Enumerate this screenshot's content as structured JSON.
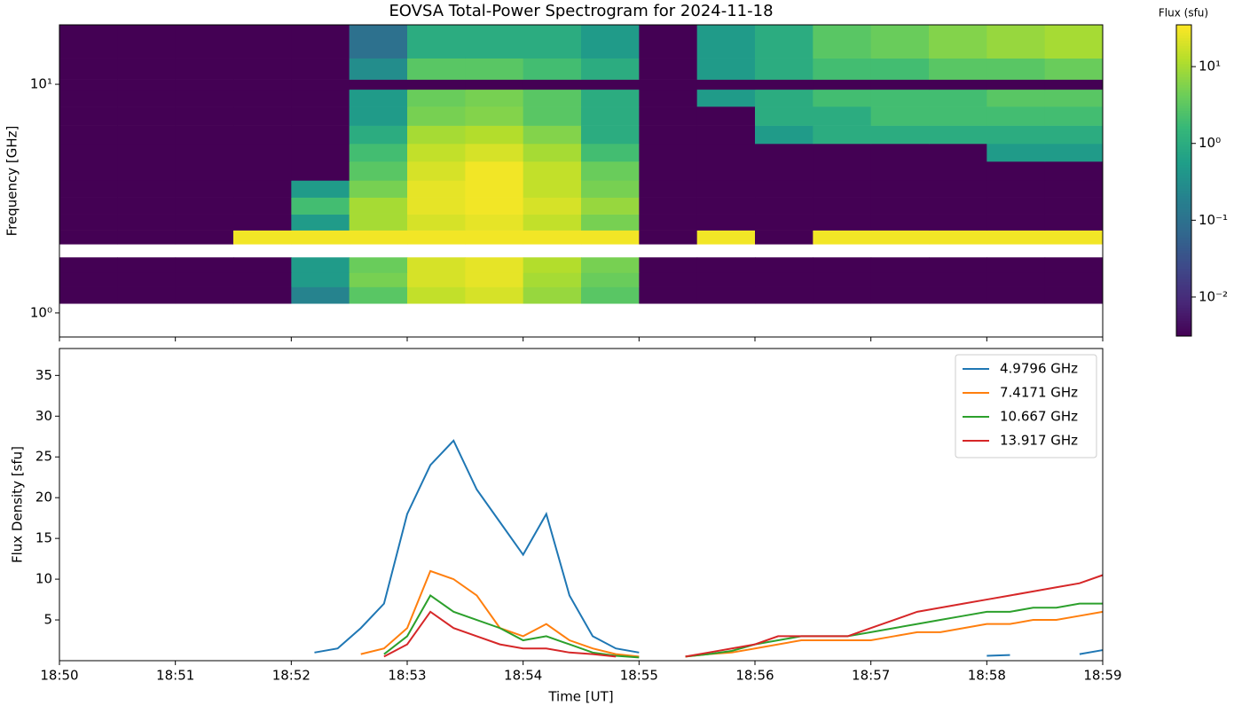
{
  "chart_data": [
    {
      "type": "heatmap",
      "title": "EOVSA Total-Power Spectrogram for 2024-11-18",
      "y_label": "Frequency [GHz]",
      "colorbar_label": "Flux (sfu)",
      "colormap": "viridis",
      "log_y": true,
      "log_color": true,
      "xlim": [
        0,
        9
      ],
      "ylim": [
        0.785,
        18.2
      ],
      "yticks": [
        {
          "value": 1,
          "label": "10⁰"
        },
        {
          "value": 10,
          "label": "10¹"
        }
      ],
      "clim": [
        0.0031,
        35
      ],
      "cticks": [
        {
          "value": 0.01,
          "label": "10⁻²"
        },
        {
          "value": 0.1,
          "label": "10⁻¹"
        },
        {
          "value": 1,
          "label": "10⁰"
        },
        {
          "value": 10,
          "label": "10¹"
        }
      ],
      "x": [
        0,
        0.5,
        1,
        1.5,
        2,
        2.5,
        3,
        3.5,
        4,
        4.5,
        5,
        5.5,
        6,
        6.5,
        7,
        7.5,
        8,
        8.5,
        9
      ],
      "y": [
        1.1,
        1.3,
        1.5,
        1.75,
        2.0,
        2.3,
        2.7,
        3.2,
        3.8,
        4.6,
        5.5,
        6.6,
        8,
        9.5,
        10.5,
        13,
        18.2
      ],
      "z": [
        [
          0.003,
          0.003,
          0.003,
          0.003,
          0.2,
          3,
          15,
          20,
          8,
          3,
          0.003,
          0.003,
          0.003,
          0.003,
          0.003,
          0.003,
          0.003,
          0.003
        ],
        [
          0.003,
          0.003,
          0.003,
          0.003,
          0.5,
          5,
          20,
          25,
          10,
          4,
          0.003,
          0.003,
          0.003,
          0.003,
          0.003,
          0.003,
          0.003,
          0.003
        ],
        [
          0.003,
          0.003,
          0.003,
          0.003,
          0.5,
          4,
          20,
          25,
          12,
          5,
          0.003,
          0.003,
          0.003,
          0.003,
          0.003,
          0.003,
          0.003,
          0.003
        ],
        [
          null,
          null,
          null,
          null,
          null,
          null,
          null,
          null,
          null,
          null,
          null,
          null,
          null,
          null,
          null,
          null,
          null,
          null
        ],
        [
          0.003,
          0.003,
          0.003,
          30,
          30,
          30,
          30,
          30,
          30,
          30,
          0.003,
          30,
          0.003,
          30,
          30,
          30,
          30,
          30
        ],
        [
          0.003,
          0.003,
          0.003,
          0.003,
          0.5,
          10,
          20,
          25,
          15,
          5,
          0.003,
          0.003,
          0.003,
          0.003,
          0.003,
          0.003,
          0.003,
          0.003
        ],
        [
          0.003,
          0.003,
          0.003,
          0.003,
          2,
          10,
          25,
          30,
          20,
          8,
          0.003,
          0.003,
          0.003,
          0.003,
          0.003,
          0.003,
          0.003,
          0.003
        ],
        [
          0.003,
          0.003,
          0.003,
          0.003,
          0.5,
          5,
          25,
          30,
          15,
          5,
          0.003,
          0.003,
          0.003,
          0.003,
          0.003,
          0.003,
          0.003,
          0.003
        ],
        [
          0.003,
          0.003,
          0.003,
          0.003,
          0.003,
          3,
          20,
          30,
          15,
          4,
          0.003,
          0.003,
          0.003,
          0.003,
          0.003,
          0.003,
          0.003,
          0.003
        ],
        [
          0.003,
          0.003,
          0.003,
          0.003,
          0.003,
          2,
          15,
          20,
          10,
          2,
          0.003,
          0.003,
          0.003,
          0.003,
          0.003,
          0.003,
          0.5,
          0.5
        ],
        [
          0.003,
          0.003,
          0.003,
          0.003,
          0.003,
          1,
          10,
          12,
          6,
          1,
          0.003,
          0.003,
          0.5,
          1,
          1,
          1,
          1,
          1
        ],
        [
          0.003,
          0.003,
          0.003,
          0.003,
          0.003,
          0.5,
          5,
          6,
          3,
          1,
          0.003,
          0.003,
          1,
          1,
          2,
          2,
          2,
          2
        ],
        [
          0.003,
          0.003,
          0.003,
          0.003,
          0.003,
          0.5,
          4,
          5,
          3,
          1,
          0.003,
          0.5,
          1,
          2,
          2,
          2,
          3,
          3
        ],
        [
          0.003,
          0.003,
          0.003,
          0.003,
          0.003,
          0.003,
          0.003,
          0.003,
          0.003,
          0.003,
          0.003,
          0.003,
          0.003,
          0.003,
          0.003,
          0.003,
          0.003,
          0.003
        ],
        [
          0.003,
          0.003,
          0.003,
          0.003,
          0.003,
          0.3,
          3,
          3,
          2,
          1,
          0.003,
          0.5,
          1,
          2,
          2,
          3,
          3,
          4
        ],
        [
          0.003,
          0.003,
          0.003,
          0.003,
          0.003,
          0.1,
          1,
          1,
          1,
          0.5,
          0.003,
          0.5,
          1,
          3,
          4,
          6,
          8,
          10
        ]
      ]
    },
    {
      "type": "line",
      "x_label": "Time [UT]",
      "y_label": "Flux Density [sfu]",
      "legend": "upper right",
      "xlim": [
        0,
        9
      ],
      "ylim": [
        0,
        38.3
      ],
      "xticks": [
        {
          "value": 0,
          "label": "18:50"
        },
        {
          "value": 1,
          "label": "18:51"
        },
        {
          "value": 2,
          "label": "18:52"
        },
        {
          "value": 3,
          "label": "18:53"
        },
        {
          "value": 4,
          "label": "18:54"
        },
        {
          "value": 5,
          "label": "18:55"
        },
        {
          "value": 6,
          "label": "18:56"
        },
        {
          "value": 7,
          "label": "18:57"
        },
        {
          "value": 8,
          "label": "18:58"
        },
        {
          "value": 9,
          "label": "18:59"
        }
      ],
      "yticks": [
        5,
        10,
        15,
        20,
        25,
        30,
        35
      ],
      "x": [
        0,
        0.2,
        0.4,
        0.6,
        0.8,
        1,
        1.2,
        1.4,
        1.6,
        1.8,
        2,
        2.2,
        2.4,
        2.6,
        2.8,
        3,
        3.2,
        3.4,
        3.6,
        3.8,
        4,
        4.2,
        4.4,
        4.6,
        4.8,
        5,
        5.2,
        5.4,
        5.6,
        5.8,
        6,
        6.2,
        6.4,
        6.6,
        6.8,
        7,
        7.2,
        7.4,
        7.6,
        7.8,
        8,
        8.2,
        8.4,
        8.6,
        8.8,
        9
      ],
      "series": [
        {
          "name": "4.9796 GHz",
          "color": "#1f77b4",
          "values": [
            null,
            null,
            null,
            null,
            null,
            null,
            null,
            null,
            null,
            null,
            null,
            1,
            1.5,
            4,
            7,
            18,
            24,
            27,
            21,
            17,
            13,
            18,
            8,
            3,
            1.5,
            1,
            null,
            null,
            null,
            null,
            null,
            null,
            null,
            null,
            null,
            null,
            null,
            null,
            null,
            null,
            0.6,
            0.7,
            null,
            null,
            0.8,
            1.3
          ]
        },
        {
          "name": "7.4171 GHz",
          "color": "#ff7f0e",
          "values": [
            null,
            null,
            null,
            null,
            null,
            null,
            null,
            null,
            null,
            null,
            null,
            null,
            null,
            0.8,
            1.5,
            4,
            11,
            10,
            8,
            4,
            3,
            4.5,
            2.5,
            1.5,
            0.8,
            0.5,
            null,
            0.5,
            0.8,
            1,
            1.5,
            2,
            2.5,
            2.5,
            2.5,
            2.5,
            3,
            3.5,
            3.5,
            4,
            4.5,
            4.5,
            5,
            5,
            5.5,
            6
          ]
        },
        {
          "name": "10.667 GHz",
          "color": "#2ca02c",
          "values": [
            null,
            null,
            null,
            null,
            null,
            null,
            null,
            null,
            null,
            null,
            null,
            null,
            null,
            null,
            0.8,
            3,
            8,
            6,
            5,
            4,
            2.5,
            3,
            2,
            1,
            0.6,
            0.4,
            null,
            0.5,
            0.8,
            1.2,
            2,
            2.5,
            3,
            3,
            3,
            3.5,
            4,
            4.5,
            5,
            5.5,
            6,
            6,
            6.5,
            6.5,
            7,
            7
          ]
        },
        {
          "name": "13.917 GHz",
          "color": "#d62728",
          "values": [
            null,
            null,
            null,
            null,
            null,
            null,
            null,
            null,
            null,
            null,
            null,
            null,
            null,
            null,
            0.5,
            2,
            6,
            4,
            3,
            2,
            1.5,
            1.5,
            1,
            0.8,
            0.5,
            null,
            null,
            0.5,
            1,
            1.5,
            2,
            3,
            3,
            3,
            3,
            4,
            5,
            6,
            6.5,
            7,
            7.5,
            8,
            8.5,
            9,
            9.5,
            10.5
          ]
        }
      ]
    }
  ]
}
